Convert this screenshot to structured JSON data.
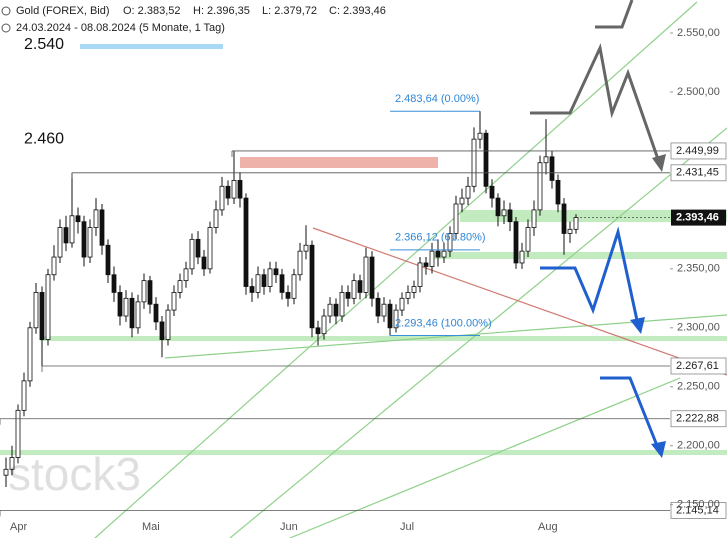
{
  "chart_data": {
    "type": "candlestick",
    "title": "Gold (FOREX, Bid)",
    "stats": [
      "O: 2.383,52",
      "H: 2.396,35",
      "L: 2.379,72",
      "C: 2.393,46"
    ],
    "range": "24.03.2024 - 08.08.2024 (5 Monate, 1 Tag)",
    "watermark": "stock3",
    "categories": [
      null,
      null,
      "Apr",
      null,
      null,
      null,
      null,
      null,
      null,
      null,
      null,
      null,
      null,
      null,
      null,
      null,
      null,
      null,
      null,
      null,
      null,
      null,
      null,
      null,
      "Mai",
      null,
      null,
      null,
      null,
      null,
      null,
      null,
      null,
      null,
      null,
      null,
      null,
      null,
      null,
      null,
      null,
      null,
      null,
      null,
      null,
      null,
      null,
      "Jun",
      null,
      null,
      null,
      null,
      null,
      null,
      null,
      null,
      null,
      null,
      null,
      null,
      null,
      null,
      null,
      null,
      null,
      null,
      null,
      "Jul",
      null,
      null,
      null,
      null,
      null,
      null,
      null,
      null,
      null,
      null,
      null,
      null,
      null,
      null,
      null,
      null,
      null,
      null,
      null,
      null,
      null,
      null,
      "Aug",
      null,
      null,
      null,
      null,
      null
    ],
    "open": [
      2175,
      2180,
      2190,
      2230,
      2255,
      2300,
      2330,
      2290,
      2345,
      2360,
      2385,
      2372,
      2395,
      2390,
      2360,
      2385,
      2400,
      2370,
      2345,
      2330,
      2310,
      2325,
      2300,
      2322,
      2340,
      2320,
      2305,
      2290,
      2315,
      2330,
      2340,
      2350,
      2375,
      2360,
      2350,
      2385,
      2400,
      2420,
      2410,
      2425,
      2410,
      2335,
      2330,
      2345,
      2335,
      2350,
      2345,
      2330,
      2325,
      2345,
      2365,
      2370,
      2300,
      2295,
      2310,
      2320,
      2310,
      2330,
      2325,
      2340,
      2330,
      2360,
      2325,
      2310,
      2320,
      2300,
      2315,
      2325,
      2330,
      2335,
      2355,
      2352,
      2365,
      2360,
      2365,
      2380,
      2405,
      2410,
      2420,
      2460,
      2465,
      2420,
      2410,
      2395,
      2400,
      2390,
      2355,
      2365,
      2385,
      2400,
      2440,
      2445,
      2425,
      2405,
      2380,
      2383.52
    ],
    "high": [
      2190,
      2200,
      2235,
      2262,
      2305,
      2338,
      2335,
      2350,
      2370,
      2392,
      2395,
      2431.45,
      2402,
      2395,
      2392,
      2410,
      2405,
      2375,
      2352,
      2336,
      2332,
      2330,
      2328,
      2346,
      2344,
      2326,
      2310,
      2320,
      2336,
      2346,
      2356,
      2380,
      2382,
      2366,
      2390,
      2408,
      2428,
      2425,
      2449.99,
      2432,
      2414,
      2342,
      2352,
      2350,
      2356,
      2356,
      2350,
      2336,
      2350,
      2372,
      2387,
      2374,
      2306,
      2316,
      2326,
      2325,
      2336,
      2336,
      2346,
      2345,
      2368,
      2365,
      2330,
      2326,
      2324,
      2320,
      2330,
      2336,
      2340,
      2360,
      2360,
      2372,
      2375,
      2372,
      2386,
      2412,
      2418,
      2428,
      2470,
      2483.64,
      2468,
      2426,
      2414,
      2408,
      2406,
      2394,
      2372,
      2392,
      2408,
      2446,
      2477,
      2450,
      2430,
      2410,
      2390,
      2396.35
    ],
    "low": [
      2165,
      2175,
      2185,
      2225,
      2250,
      2295,
      2267.61,
      2285,
      2340,
      2355,
      2365,
      2368,
      2380,
      2352,
      2355,
      2378,
      2362,
      2338,
      2322,
      2302,
      2305,
      2292,
      2295,
      2316,
      2312,
      2298,
      2275,
      2285,
      2310,
      2325,
      2334,
      2345,
      2354,
      2344,
      2346,
      2380,
      2395,
      2404,
      2405,
      2402,
      2328,
      2322,
      2325,
      2328,
      2330,
      2338,
      2324,
      2318,
      2320,
      2340,
      2358,
      2292,
      2285,
      2290,
      2304,
      2303,
      2305,
      2318,
      2320,
      2324,
      2325,
      2318,
      2304,
      2305,
      2293.46,
      2296,
      2310,
      2320,
      2325,
      2330,
      2345,
      2346,
      2352,
      2355,
      2360,
      2375,
      2398,
      2404,
      2415,
      2452,
      2414,
      2402,
      2386,
      2388,
      2382,
      2350,
      2350,
      2360,
      2378,
      2395,
      2430,
      2418,
      2398,
      2362,
      2372,
      2379.72
    ],
    "close": [
      2180,
      2190,
      2230,
      2255,
      2300,
      2330,
      2290,
      2345,
      2360,
      2385,
      2372,
      2395,
      2390,
      2360,
      2385,
      2400,
      2370,
      2345,
      2330,
      2310,
      2325,
      2300,
      2322,
      2340,
      2320,
      2305,
      2290,
      2315,
      2330,
      2340,
      2350,
      2375,
      2360,
      2350,
      2385,
      2400,
      2420,
      2410,
      2425,
      2410,
      2335,
      2330,
      2345,
      2335,
      2350,
      2345,
      2330,
      2325,
      2345,
      2365,
      2370,
      2300,
      2295,
      2310,
      2320,
      2310,
      2330,
      2325,
      2340,
      2330,
      2360,
      2325,
      2310,
      2320,
      2300,
      2315,
      2325,
      2330,
      2335,
      2355,
      2352,
      2365,
      2360,
      2365,
      2380,
      2405,
      2410,
      2420,
      2460,
      2465,
      2420,
      2410,
      2395,
      2400,
      2390,
      2355,
      2365,
      2385,
      2400,
      2440,
      2445,
      2425,
      2405,
      2380,
      2383.52,
      2393.46
    ],
    "ylim": [
      2137,
      2578
    ],
    "yticks": [
      {
        "value": 2150,
        "label": "2.150,00"
      },
      {
        "value": 2200,
        "label": "2.200,00"
      },
      {
        "value": 2250,
        "label": "2.250,00"
      },
      {
        "value": 2300,
        "label": "2.300,00"
      },
      {
        "value": 2350,
        "label": "2.350,00"
      },
      {
        "value": 2500,
        "label": "2.500,00"
      },
      {
        "value": 2550,
        "label": "2.550,00"
      }
    ],
    "levels": [
      {
        "value": 2449.99,
        "label": "2.449,99"
      },
      {
        "value": 2431.45,
        "label": "2.431,45"
      },
      {
        "value": 2267.61,
        "label": "2.267,61"
      },
      {
        "value": 2222.88,
        "label": "2.222,88"
      },
      {
        "value": 2145.14,
        "label": "2.145,14"
      }
    ],
    "current": {
      "value": 2393.46,
      "label": "2.393,46"
    },
    "marks": [
      {
        "value": 2540,
        "label": "2.540"
      },
      {
        "value": 2460,
        "label": "2.460"
      }
    ],
    "fibonacci": [
      {
        "value": 2483.64,
        "label": "2.483,64 (0.00%)"
      },
      {
        "value": 2366.12,
        "label": "2.366,12 (61.80%)"
      },
      {
        "value": 2293.46,
        "label": "2.293,46 (100.00%)"
      }
    ],
    "up_color": "#ffffff",
    "down_color": "#111111"
  }
}
